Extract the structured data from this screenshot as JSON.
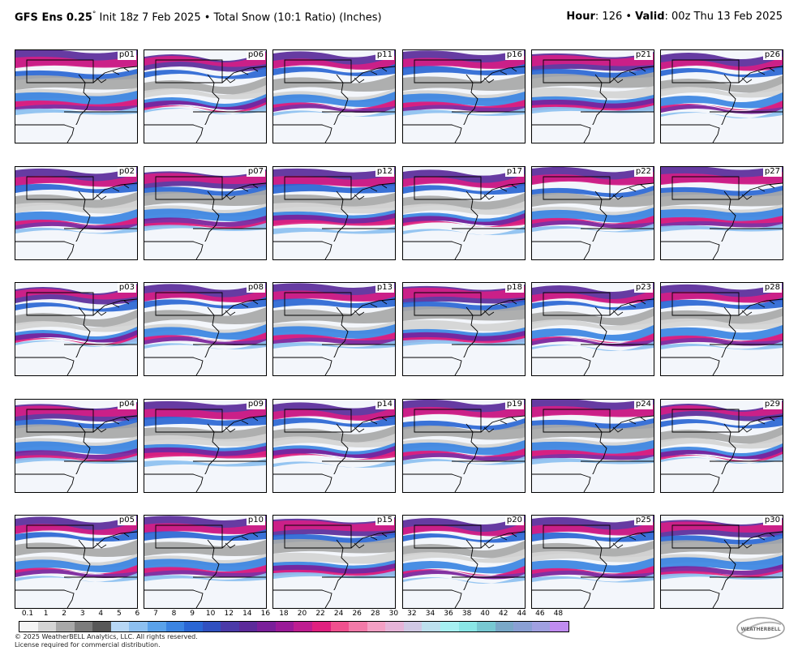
{
  "header": {
    "model": "GFS Ens 0.25",
    "degree": "°",
    "init": " Init 18z 7 Feb 2025",
    "sep": " • ",
    "product": "Total Snow (10:1 Ratio) (Inches)",
    "hour_label": "Hour",
    "hour_value": ": 126",
    "valid_label": "Valid",
    "valid_value": ": 00z Thu 13 Feb 2025"
  },
  "panels": [
    [
      "p01",
      "p06",
      "p11",
      "p16",
      "p21",
      "p26"
    ],
    [
      "p02",
      "p07",
      "p12",
      "p17",
      "p22",
      "p27"
    ],
    [
      "p03",
      "p08",
      "p13",
      "p18",
      "p23",
      "p28"
    ],
    [
      "p04",
      "p09",
      "p14",
      "p19",
      "p24",
      "p29"
    ],
    [
      "p05",
      "p10",
      "p15",
      "p20",
      "p25",
      "p30"
    ]
  ],
  "legend": {
    "ticks": [
      "0.1",
      "1",
      "2",
      "3",
      "4",
      "5",
      "6",
      "7",
      "8",
      "9",
      "10",
      "12",
      "14",
      "16",
      "18",
      "20",
      "22",
      "24",
      "26",
      "28",
      "30",
      "32",
      "34",
      "36",
      "38",
      "40",
      "42",
      "44",
      "46",
      "48"
    ],
    "colors": [
      "#f4f4f4",
      "#d4d4d4",
      "#a8a8a8",
      "#7c7c7c",
      "#585858",
      "#b7d7f5",
      "#8dc0f0",
      "#5aa2ea",
      "#3b84e2",
      "#2a66d4",
      "#3050c0",
      "#4b3aa8",
      "#5c2a9a",
      "#7a1f9a",
      "#9a1a98",
      "#be1d90",
      "#e0207f",
      "#f0508e",
      "#f27aa8",
      "#f4a0c4",
      "#e6b4d8",
      "#d0c8e4",
      "#bde0ee",
      "#a6f0f2",
      "#8ae6e6",
      "#78c8d2",
      "#7aa8c8",
      "#8aa0d4",
      "#a0a0e0",
      "#c08cf0"
    ]
  },
  "footer": {
    "copyright": "© 2025 WeatherBELL Analytics, LLC. All rights reserved.",
    "license": "License required for commercial distribution."
  },
  "logo_text": "WEATHERBELL"
}
